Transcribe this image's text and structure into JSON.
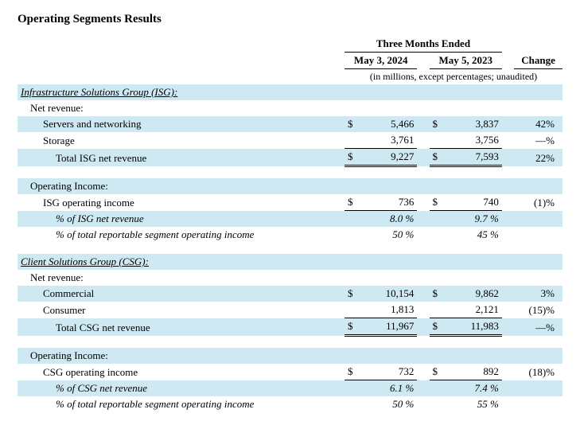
{
  "title": "Operating Segments Results",
  "header": {
    "span": "Three Months Ended",
    "col1": "May 3, 2024",
    "col2": "May 5, 2023",
    "change": "Change",
    "note": "(in millions, except percentages; unaudited)"
  },
  "isg": {
    "heading": "Infrastructure Solutions Group (ISG):",
    "net_revenue_label": "Net revenue:",
    "servers": {
      "label": "Servers and networking",
      "cur1": "$",
      "v1": "5,466",
      "cur2": "$",
      "v2": "3,837",
      "chg": "42%"
    },
    "storage": {
      "label": "Storage",
      "v1": "3,761",
      "v2": "3,756",
      "chg": "—%"
    },
    "total": {
      "label": "Total ISG net revenue",
      "cur1": "$",
      "v1": "9,227",
      "cur2": "$",
      "v2": "7,593",
      "chg": "22%"
    },
    "op_heading": "Operating Income:",
    "op": {
      "label": "ISG operating income",
      "cur1": "$",
      "v1": "736",
      "cur2": "$",
      "v2": "740",
      "chg": "(1)%"
    },
    "pct_rev": {
      "label": "% of ISG net revenue",
      "v1": "8.0 %",
      "v2": "9.7 %"
    },
    "pct_tot": {
      "label": "% of total reportable segment operating income",
      "v1": "50 %",
      "v2": "45 %"
    }
  },
  "csg": {
    "heading": "Client Solutions Group (CSG):",
    "net_revenue_label": "Net revenue:",
    "commercial": {
      "label": "Commercial",
      "cur1": "$",
      "v1": "10,154",
      "cur2": "$",
      "v2": "9,862",
      "chg": "3%"
    },
    "consumer": {
      "label": "Consumer",
      "v1": "1,813",
      "v2": "2,121",
      "chg": "(15)%"
    },
    "total": {
      "label": "Total CSG net revenue",
      "cur1": "$",
      "v1": "11,967",
      "cur2": "$",
      "v2": "11,983",
      "chg": "—%"
    },
    "op_heading": "Operating Income:",
    "op": {
      "label": "CSG operating income",
      "cur1": "$",
      "v1": "732",
      "cur2": "$",
      "v2": "892",
      "chg": "(18)%"
    },
    "pct_rev": {
      "label": "% of CSG net revenue",
      "v1": "6.1 %",
      "v2": "7.4 %"
    },
    "pct_tot": {
      "label": "% of total reportable segment operating income",
      "v1": "50 %",
      "v2": "55 %"
    }
  }
}
